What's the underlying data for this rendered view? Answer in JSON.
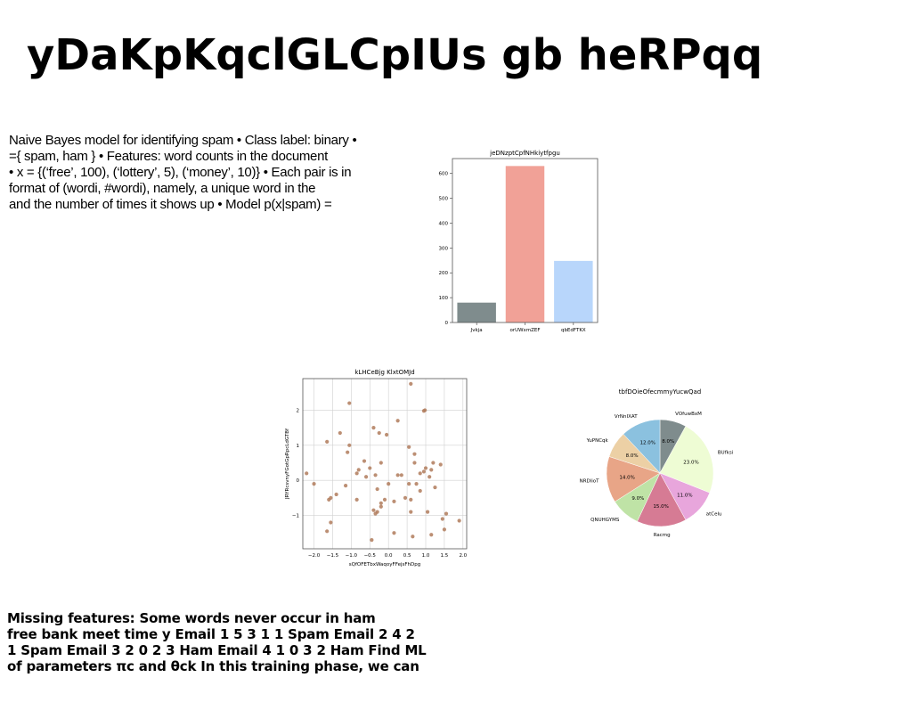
{
  "slide": {
    "title": "yDaKpKqclGLCpIUs gb heRPqq",
    "body_lines": [
      "Naive Bayes model for identifying spam • Class label: binary •",
      "={ spam, ham } • Features: word counts in the document",
      "• x = {(‘free’, 100), (‘lottery’, 5), (‘money’, 10)} • Each pair is in",
      "format of (wordi, #wordi), namely, a unique word in the",
      "and the number of times it shows up • Model p(x|spam) ="
    ],
    "footer_lines": [
      "Missing features: Some words never occur in ham",
      "free bank meet time y Email 1 5 3 1 1 Spam Email 2 4 2",
      "1 Spam Email 3 2 0 2 3 Ham Email 4 1 0 3 2 Ham Find ML",
      "of parameters πc and θck In this training phase, we can"
    ]
  },
  "chart_data": [
    {
      "type": "bar",
      "title": "jeDNzptCpfNHkiytfpgu",
      "categories": [
        "Jvkja",
        "orUWxmZEF",
        "qbEdFTKX"
      ],
      "values": [
        80,
        630,
        248
      ],
      "colors": [
        "#7f8c8d",
        "#f1a197",
        "#b8d6fb"
      ],
      "ylim": [
        0,
        660
      ],
      "yticks": [
        0,
        100,
        200,
        300,
        400,
        500,
        600
      ]
    },
    {
      "type": "scatter",
      "title": "kLHCeBjg KlxtOMJd",
      "xlabel": "sQfOFETbxWaqoyFFejsFhDpg",
      "ylabel": "JRYRcsvnyFGotGpRpcLdGTBf",
      "xlim": [
        -2.3,
        2.1
      ],
      "ylim": [
        -1.95,
        2.9
      ],
      "xticks": [
        -2.0,
        -1.5,
        -1.0,
        -0.5,
        0.0,
        0.5,
        1.0,
        1.5,
        2.0
      ],
      "yticks": [
        -1,
        0,
        1,
        2
      ],
      "grid": true,
      "color": "#b07b5c",
      "points": [
        [
          0.6,
          2.75
        ],
        [
          -1.05,
          2.2
        ],
        [
          0.98,
          2.0
        ],
        [
          0.95,
          1.98
        ],
        [
          0.25,
          1.7
        ],
        [
          -1.3,
          1.35
        ],
        [
          -0.4,
          1.5
        ],
        [
          -0.25,
          1.35
        ],
        [
          -0.05,
          1.3
        ],
        [
          -1.65,
          1.1
        ],
        [
          -1.05,
          1.0
        ],
        [
          0.55,
          0.95
        ],
        [
          -1.1,
          0.8
        ],
        [
          0.7,
          0.75
        ],
        [
          -0.65,
          0.55
        ],
        [
          -0.2,
          0.5
        ],
        [
          0.7,
          0.5
        ],
        [
          1.2,
          0.5
        ],
        [
          1.4,
          0.45
        ],
        [
          -0.5,
          0.35
        ],
        [
          -0.8,
          0.3
        ],
        [
          1.0,
          0.35
        ],
        [
          1.15,
          0.3
        ],
        [
          0.95,
          0.25
        ],
        [
          -2.2,
          0.2
        ],
        [
          -0.85,
          0.2
        ],
        [
          -0.35,
          0.15
        ],
        [
          0.25,
          0.15
        ],
        [
          0.35,
          0.15
        ],
        [
          0.85,
          0.2
        ],
        [
          -0.6,
          0.1
        ],
        [
          1.1,
          0.1
        ],
        [
          -2.0,
          -0.1
        ],
        [
          -1.15,
          -0.15
        ],
        [
          0.0,
          -0.1
        ],
        [
          0.55,
          -0.1
        ],
        [
          0.75,
          -0.1
        ],
        [
          1.25,
          -0.2
        ],
        [
          0.85,
          -0.3
        ],
        [
          -0.3,
          -0.25
        ],
        [
          -1.4,
          -0.4
        ],
        [
          -1.55,
          -0.5
        ],
        [
          -1.6,
          -0.55
        ],
        [
          -0.85,
          -0.55
        ],
        [
          -0.1,
          -0.55
        ],
        [
          -0.2,
          -0.65
        ],
        [
          0.45,
          -0.5
        ],
        [
          0.6,
          -0.55
        ],
        [
          0.15,
          -0.6
        ],
        [
          -0.2,
          -0.75
        ],
        [
          -0.4,
          -0.85
        ],
        [
          -0.35,
          -0.95
        ],
        [
          -0.3,
          -0.9
        ],
        [
          0.6,
          -0.9
        ],
        [
          1.05,
          -0.9
        ],
        [
          1.55,
          -0.95
        ],
        [
          1.45,
          -1.1
        ],
        [
          1.9,
          -1.15
        ],
        [
          -1.55,
          -1.2
        ],
        [
          -1.65,
          -1.45
        ],
        [
          0.15,
          -1.5
        ],
        [
          0.65,
          -1.6
        ],
        [
          -0.45,
          -1.7
        ],
        [
          1.15,
          -1.55
        ],
        [
          1.5,
          -1.4
        ]
      ]
    },
    {
      "type": "pie",
      "title": "tbfDOieOfecmmyYucwQad",
      "labels": [
        "VOfuwBxM",
        "BUfksi",
        "atCelu",
        "Racmg",
        "QNUHGYMS",
        "NRDlioT",
        "YuPNCqk",
        "VrNnIXAT"
      ],
      "values": [
        8.0,
        23.0,
        11.0,
        15.0,
        9.0,
        14.0,
        8.0,
        12.0
      ],
      "colors": [
        "#7f8c8d",
        "#eefcd4",
        "#e8a6dc",
        "#d67b94",
        "#bfe3a6",
        "#e8a587",
        "#ecd0a5",
        "#8bc1df"
      ],
      "start_angle_deg": 90,
      "direction": "clockwise"
    }
  ]
}
